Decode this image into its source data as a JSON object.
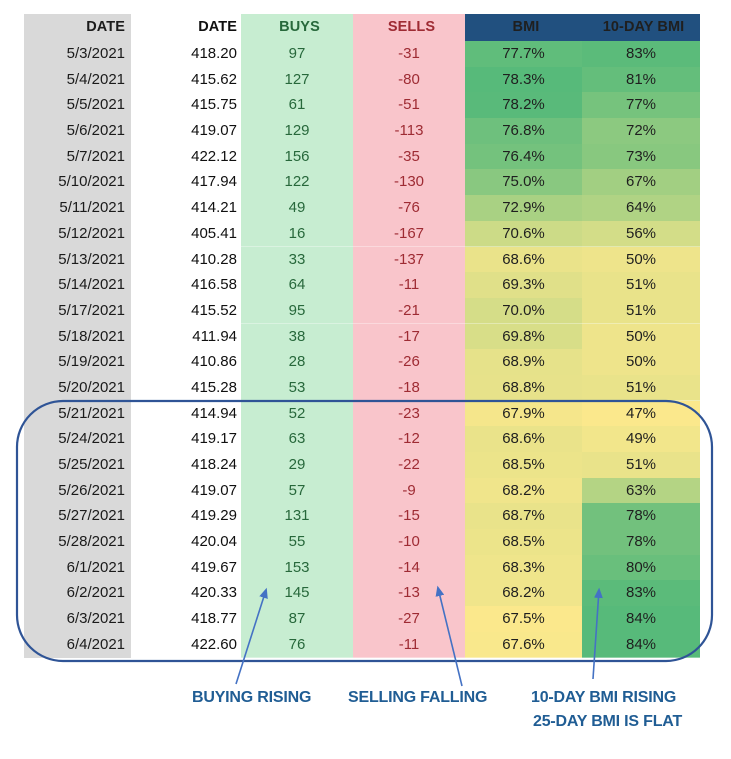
{
  "chart_data": {
    "type": "table",
    "title": "Buys / Sells / BMI daily table with 10-day BMI, annotated",
    "columns": [
      "DATE",
      "DATE",
      "BUYS",
      "SELLS",
      "BMI",
      "10-DAY BMI"
    ],
    "column_keys": [
      "date",
      "price",
      "buys",
      "sells",
      "bmi",
      "bmi-10day"
    ],
    "rows": [
      [
        "5/3/2021",
        "418.20",
        97,
        -31,
        "77.7%",
        "83%"
      ],
      [
        "5/4/2021",
        "415.62",
        127,
        -80,
        "78.3%",
        "81%"
      ],
      [
        "5/5/2021",
        "415.75",
        61,
        -51,
        "78.2%",
        "77%"
      ],
      [
        "5/6/2021",
        "419.07",
        129,
        -113,
        "76.8%",
        "72%"
      ],
      [
        "5/7/2021",
        "422.12",
        156,
        -35,
        "76.4%",
        "73%"
      ],
      [
        "5/10/2021",
        "417.94",
        122,
        -130,
        "75.0%",
        "67%"
      ],
      [
        "5/11/2021",
        "414.21",
        49,
        -76,
        "72.9%",
        "64%"
      ],
      [
        "5/12/2021",
        "405.41",
        16,
        -167,
        "70.6%",
        "56%"
      ],
      [
        "5/13/2021",
        "410.28",
        33,
        -137,
        "68.6%",
        "50%"
      ],
      [
        "5/14/2021",
        "416.58",
        64,
        -11,
        "69.3%",
        "51%"
      ],
      [
        "5/17/2021",
        "415.52",
        95,
        -21,
        "70.0%",
        "51%"
      ],
      [
        "5/18/2021",
        "411.94",
        38,
        -17,
        "69.8%",
        "50%"
      ],
      [
        "5/19/2021",
        "410.86",
        28,
        -26,
        "68.9%",
        "50%"
      ],
      [
        "5/20/2021",
        "415.28",
        53,
        -18,
        "68.8%",
        "51%"
      ],
      [
        "5/21/2021",
        "414.94",
        52,
        -23,
        "67.9%",
        "47%"
      ],
      [
        "5/24/2021",
        "419.17",
        63,
        -12,
        "68.6%",
        "49%"
      ],
      [
        "5/25/2021",
        "418.24",
        29,
        -22,
        "68.5%",
        "51%"
      ],
      [
        "5/26/2021",
        "419.07",
        57,
        -9,
        "68.2%",
        "63%"
      ],
      [
        "5/27/2021",
        "419.29",
        131,
        -15,
        "68.7%",
        "78%"
      ],
      [
        "5/28/2021",
        "420.04",
        55,
        -10,
        "68.5%",
        "78%"
      ],
      [
        "6/1/2021",
        "419.67",
        153,
        -14,
        "68.3%",
        "80%"
      ],
      [
        "6/2/2021",
        "420.33",
        145,
        -13,
        "68.2%",
        "83%"
      ],
      [
        "6/3/2021",
        "418.77",
        87,
        -27,
        "67.5%",
        "84%"
      ],
      [
        "6/4/2021",
        "422.60",
        76,
        -11,
        "67.6%",
        "84%"
      ]
    ],
    "highlighted_row_range": [
      "5/21/2021",
      "6/4/2021"
    ]
  },
  "conditional_formatting": {
    "header_bg": "#21507F",
    "header_text": "#FFFFFF",
    "date_bg": "#D9D9D9",
    "buys_bg": "#C7EDD1",
    "buys_text": "#27683B",
    "sells_bg": "#F9C5CB",
    "sells_text": "#9E2B33",
    "bmi_scale": {
      "min": 67.5,
      "max": 78.3,
      "low_color": "#FBE88C",
      "high_color": "#57BA7A"
    },
    "bmi10_scale": {
      "min": 47,
      "max": 84,
      "low_color": "#FBE88C",
      "high_color": "#57BA7A"
    }
  },
  "annotations": {
    "buying": "BUYING RISING",
    "selling": "SELLING FALLING",
    "bmi10_line1": "10-DAY BMI RISING",
    "bmi10_line2": "25-DAY BMI IS FLAT",
    "label_color": "#205D94",
    "arrow_color": "#4472C4",
    "oval_color": "#2F5496"
  }
}
